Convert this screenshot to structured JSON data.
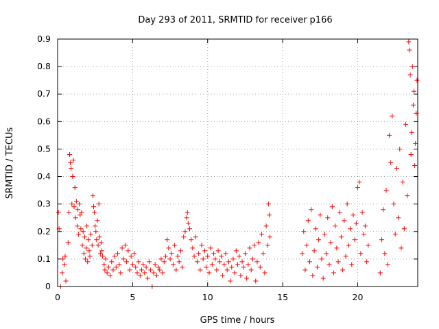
{
  "chart_data": {
    "type": "scatter",
    "title": "Day 293 of 2011, SRMTID for receiver p166",
    "xlabel": "GPS time / hours",
    "ylabel": "SRMTID / TECUs",
    "xlim": [
      0,
      24
    ],
    "ylim": [
      0,
      0.9
    ],
    "x_ticks": [
      0,
      5,
      10,
      15,
      20
    ],
    "x_tick_labels": [
      "0",
      "5",
      "10",
      "15",
      "20"
    ],
    "y_ticks": [
      0,
      0.1,
      0.2,
      0.3,
      0.4,
      0.5,
      0.6,
      0.7,
      0.8,
      0.9
    ],
    "y_tick_labels": [
      "0",
      "0.1",
      "0.2",
      "0.3",
      "0.4",
      "0.5",
      "0.6",
      "0.7",
      "0.8",
      "0.9"
    ],
    "grid": true,
    "marker": "+",
    "color": "#ff0000",
    "series": [
      {
        "name": "SRMTID",
        "points": [
          [
            0.05,
            0.27
          ],
          [
            0.1,
            0.21
          ],
          [
            0.2,
            0.0
          ],
          [
            0.3,
            0.05
          ],
          [
            0.35,
            0.1
          ],
          [
            0.45,
            0.08
          ],
          [
            0.5,
            0.11
          ],
          [
            0.55,
            0.02
          ],
          [
            0.7,
            0.16
          ],
          [
            0.75,
            0.27
          ],
          [
            0.8,
            0.48
          ],
          [
            0.85,
            0.45
          ],
          [
            0.9,
            0.43
          ],
          [
            0.95,
            0.3
          ],
          [
            1.0,
            0.4
          ],
          [
            1.05,
            0.46
          ],
          [
            1.1,
            0.29
          ],
          [
            1.15,
            0.36
          ],
          [
            1.2,
            0.25
          ],
          [
            1.25,
            0.31
          ],
          [
            1.3,
            0.22
          ],
          [
            1.35,
            0.28
          ],
          [
            1.4,
            0.19
          ],
          [
            1.45,
            0.3
          ],
          [
            1.5,
            0.26
          ],
          [
            1.55,
            0.21
          ],
          [
            1.6,
            0.27
          ],
          [
            1.65,
            0.15
          ],
          [
            1.7,
            0.2
          ],
          [
            1.75,
            0.12
          ],
          [
            1.8,
            0.18
          ],
          [
            1.85,
            0.1
          ],
          [
            1.9,
            0.14
          ],
          [
            1.95,
            0.22
          ],
          [
            2.0,
            0.09
          ],
          [
            2.05,
            0.17
          ],
          [
            2.1,
            0.13
          ],
          [
            2.15,
            0.11
          ],
          [
            2.2,
            0.19
          ],
          [
            2.3,
            0.15
          ],
          [
            2.35,
            0.33
          ],
          [
            2.4,
            0.29
          ],
          [
            2.45,
            0.27
          ],
          [
            2.5,
            0.22
          ],
          [
            2.55,
            0.2
          ],
          [
            2.6,
            0.17
          ],
          [
            2.65,
            0.24
          ],
          [
            2.7,
            0.15
          ],
          [
            2.75,
            0.3
          ],
          [
            2.8,
            0.18
          ],
          [
            2.85,
            0.12
          ],
          [
            2.9,
            0.16
          ],
          [
            2.95,
            0.13
          ],
          [
            3.0,
            0.11
          ],
          [
            3.1,
            0.08
          ],
          [
            3.15,
            0.06
          ],
          [
            3.2,
            0.1
          ],
          [
            3.3,
            0.05
          ],
          [
            3.4,
            0.07
          ],
          [
            3.5,
            0.04
          ],
          [
            3.6,
            0.09
          ],
          [
            3.7,
            0.06
          ],
          [
            3.8,
            0.11
          ],
          [
            3.9,
            0.07
          ],
          [
            4.0,
            0.12
          ],
          [
            4.1,
            0.08
          ],
          [
            4.2,
            0.05
          ],
          [
            4.3,
            0.14
          ],
          [
            4.4,
            0.1
          ],
          [
            4.5,
            0.15
          ],
          [
            4.6,
            0.09
          ],
          [
            4.7,
            0.13
          ],
          [
            4.8,
            0.06
          ],
          [
            4.9,
            0.11
          ],
          [
            5.0,
            0.08
          ],
          [
            5.1,
            0.12
          ],
          [
            5.2,
            0.07
          ],
          [
            5.3,
            0.05
          ],
          [
            5.4,
            0.09
          ],
          [
            5.5,
            0.04
          ],
          [
            5.6,
            0.06
          ],
          [
            5.7,
            0.08
          ],
          [
            5.8,
            0.05
          ],
          [
            5.9,
            0.07
          ],
          [
            6.0,
            0.03
          ],
          [
            6.1,
            0.09
          ],
          [
            6.2,
            0.06
          ],
          [
            6.3,
            0.0
          ],
          [
            6.4,
            0.05
          ],
          [
            6.5,
            0.08
          ],
          [
            6.6,
            0.04
          ],
          [
            6.7,
            0.07
          ],
          [
            6.8,
            0.06
          ],
          [
            6.9,
            0.1
          ],
          [
            7.0,
            0.05
          ],
          [
            7.1,
            0.09
          ],
          [
            7.2,
            0.11
          ],
          [
            7.3,
            0.17
          ],
          [
            7.4,
            0.14
          ],
          [
            7.5,
            0.1
          ],
          [
            7.6,
            0.12
          ],
          [
            7.7,
            0.08
          ],
          [
            7.8,
            0.15
          ],
          [
            7.9,
            0.06
          ],
          [
            8.0,
            0.11
          ],
          [
            8.1,
            0.09
          ],
          [
            8.2,
            0.13
          ],
          [
            8.3,
            0.07
          ],
          [
            8.4,
            0.18
          ],
          [
            8.5,
            0.2
          ],
          [
            8.6,
            0.25
          ],
          [
            8.65,
            0.27
          ],
          [
            8.7,
            0.23
          ],
          [
            8.8,
            0.21
          ],
          [
            8.9,
            0.17
          ],
          [
            9.0,
            0.14
          ],
          [
            9.1,
            0.11
          ],
          [
            9.2,
            0.18
          ],
          [
            9.3,
            0.09
          ],
          [
            9.4,
            0.12
          ],
          [
            9.5,
            0.06
          ],
          [
            9.6,
            0.15
          ],
          [
            9.7,
            0.1
          ],
          [
            9.8,
            0.13
          ],
          [
            9.9,
            0.07
          ],
          [
            10.0,
            0.11
          ],
          [
            10.1,
            0.05
          ],
          [
            10.2,
            0.14
          ],
          [
            10.3,
            0.08
          ],
          [
            10.4,
            0.12
          ],
          [
            10.5,
            0.1
          ],
          [
            10.6,
            0.06
          ],
          [
            10.7,
            0.13
          ],
          [
            10.8,
            0.09
          ],
          [
            10.9,
            0.11
          ],
          [
            11.0,
            0.04
          ],
          [
            11.1,
            0.08
          ],
          [
            11.2,
            0.12
          ],
          [
            11.3,
            0.06
          ],
          [
            11.4,
            0.09
          ],
          [
            11.5,
            0.02
          ],
          [
            11.6,
            0.07
          ],
          [
            11.7,
            0.1
          ],
          [
            11.8,
            0.05
          ],
          [
            11.9,
            0.13
          ],
          [
            12.0,
            0.08
          ],
          [
            12.1,
            0.11
          ],
          [
            12.2,
            0.04
          ],
          [
            12.3,
            0.09
          ],
          [
            12.4,
            0.07
          ],
          [
            12.5,
            0.12
          ],
          [
            12.6,
            0.03
          ],
          [
            12.7,
            0.08
          ],
          [
            12.8,
            0.14
          ],
          [
            12.9,
            0.06
          ],
          [
            13.0,
            0.1
          ],
          [
            13.1,
            0.15
          ],
          [
            13.2,
            0.02
          ],
          [
            13.3,
            0.09
          ],
          [
            13.4,
            0.16
          ],
          [
            13.5,
            0.07
          ],
          [
            13.6,
            0.19
          ],
          [
            13.7,
            0.12
          ],
          [
            13.8,
            0.05
          ],
          [
            13.9,
            0.22
          ],
          [
            14.0,
            0.15
          ],
          [
            14.05,
            0.3
          ],
          [
            14.1,
            0.26
          ],
          [
            14.15,
            0.18
          ],
          [
            16.3,
            0.12
          ],
          [
            16.4,
            0.2
          ],
          [
            16.5,
            0.06
          ],
          [
            16.6,
            0.15
          ],
          [
            16.7,
            0.24
          ],
          [
            16.8,
            0.09
          ],
          [
            16.9,
            0.28
          ],
          [
            17.0,
            0.04
          ],
          [
            17.1,
            0.13
          ],
          [
            17.2,
            0.21
          ],
          [
            17.3,
            0.07
          ],
          [
            17.4,
            0.17
          ],
          [
            17.5,
            0.26
          ],
          [
            17.6,
            0.1
          ],
          [
            17.7,
            0.03
          ],
          [
            17.8,
            0.19
          ],
          [
            17.9,
            0.12
          ],
          [
            18.0,
            0.25
          ],
          [
            18.1,
            0.08
          ],
          [
            18.2,
            0.16
          ],
          [
            18.3,
            0.29
          ],
          [
            18.4,
            0.05
          ],
          [
            18.5,
            0.22
          ],
          [
            18.6,
            0.14
          ],
          [
            18.7,
            0.09
          ],
          [
            18.8,
            0.27
          ],
          [
            18.9,
            0.18
          ],
          [
            19.0,
            0.06
          ],
          [
            19.1,
            0.24
          ],
          [
            19.2,
            0.11
          ],
          [
            19.3,
            0.3
          ],
          [
            19.4,
            0.15
          ],
          [
            19.5,
            0.21
          ],
          [
            19.6,
            0.08
          ],
          [
            19.7,
            0.26
          ],
          [
            19.8,
            0.17
          ],
          [
            19.9,
            0.23
          ],
          [
            20.0,
            0.36
          ],
          [
            20.1,
            0.38
          ],
          [
            20.2,
            0.12
          ],
          [
            20.3,
            0.27
          ],
          [
            20.4,
            0.19
          ],
          [
            20.5,
            0.22
          ],
          [
            20.6,
            0.09
          ],
          [
            20.7,
            0.15
          ],
          [
            21.5,
            0.05
          ],
          [
            21.6,
            0.17
          ],
          [
            21.7,
            0.28
          ],
          [
            21.8,
            0.12
          ],
          [
            21.9,
            0.35
          ],
          [
            22.0,
            0.08
          ],
          [
            22.1,
            0.55
          ],
          [
            22.2,
            0.45
          ],
          [
            22.3,
            0.62
          ],
          [
            22.4,
            0.3
          ],
          [
            22.5,
            0.19
          ],
          [
            22.6,
            0.43
          ],
          [
            22.7,
            0.25
          ],
          [
            22.8,
            0.5
          ],
          [
            22.9,
            0.14
          ],
          [
            23.0,
            0.38
          ],
          [
            23.1,
            0.21
          ],
          [
            23.2,
            0.59
          ],
          [
            23.3,
            0.33
          ],
          [
            23.4,
            0.89
          ],
          [
            23.45,
            0.86
          ],
          [
            23.5,
            0.77
          ],
          [
            23.55,
            0.48
          ],
          [
            23.6,
            0.56
          ],
          [
            23.65,
            0.8
          ],
          [
            23.7,
            0.66
          ],
          [
            23.75,
            0.71
          ],
          [
            23.8,
            0.44
          ],
          [
            23.85,
            0.52
          ],
          [
            23.9,
            0.63
          ],
          [
            23.95,
            0.75
          ]
        ]
      }
    ]
  }
}
